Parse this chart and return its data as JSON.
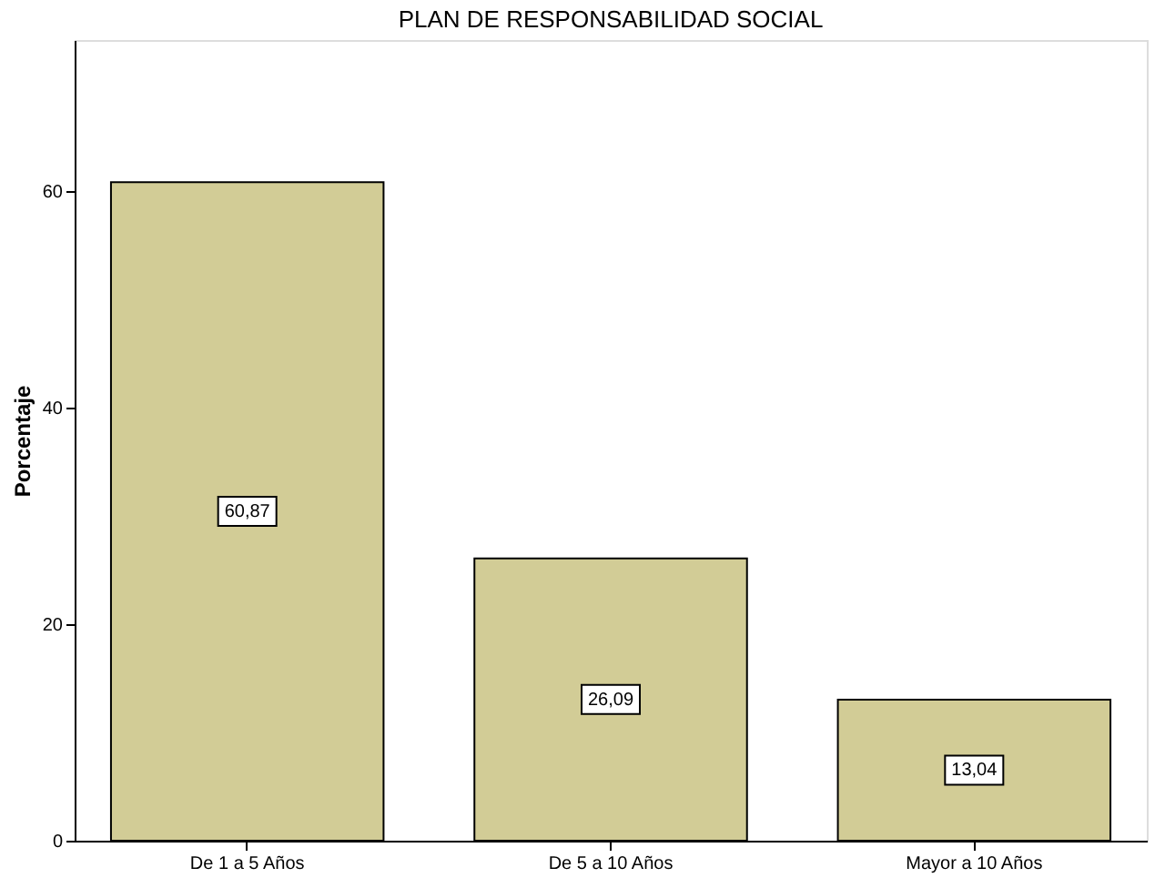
{
  "chart_data": {
    "type": "bar",
    "title": "PLAN DE RESPONSABILIDAD  SOCIAL",
    "ylabel": "Porcentaje",
    "categories": [
      "De 1 a 5 Años",
      "De  5 a 10 Años",
      "Mayor a 10 Años"
    ],
    "values": [
      60.87,
      26.09,
      13.04
    ],
    "color": "#d2cc96",
    "value_labels": [
      "60,87",
      "26,09",
      "13,04"
    ],
    "ylim": [
      0,
      74
    ],
    "yticks": [
      0,
      20,
      40,
      60
    ],
    "grid": false
  }
}
